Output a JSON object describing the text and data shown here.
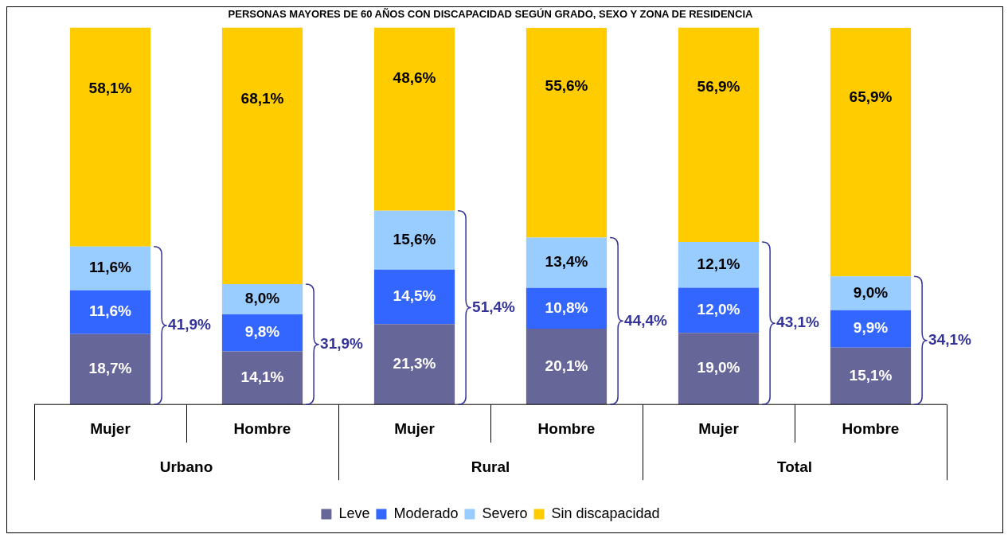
{
  "chart_data": {
    "type": "bar",
    "title": "PERSONAS MAYORES DE 60 AÑOS CON DISCAPACIDAD SEGÚN GRADO, SEXO Y ZONA DE RESIDENCIA",
    "categories": [
      "Mujer",
      "Hombre",
      "Mujer",
      "Hombre",
      "Mujer",
      "Hombre"
    ],
    "stacked": true,
    "legend": "bottom",
    "grid": false,
    "series": [
      {
        "name": "Leve",
        "color": "#666699",
        "values": [
          18.7,
          14.1,
          21.3,
          20.1,
          19.0,
          15.1
        ],
        "value_labels": [
          "18,7%",
          "14,1%",
          "21,3%",
          "20,1%",
          "19,0%",
          "15,1%"
        ]
      },
      {
        "name": "Moderado",
        "color": "#3366ff",
        "values": [
          11.6,
          9.8,
          14.5,
          10.8,
          12.0,
          9.9
        ],
        "value_labels": [
          "11,6%",
          "9,8%",
          "14,5%",
          "10,8%",
          "12,0%",
          "9,9%"
        ]
      },
      {
        "name": "Severo",
        "color": "#99ccff",
        "values": [
          11.6,
          8.0,
          15.6,
          13.4,
          12.1,
          9.0
        ],
        "value_labels": [
          "11,6%",
          "8,0%",
          "15,6%",
          "13,4%",
          "12,1%",
          "9,0%"
        ]
      },
      {
        "name": "Sin discapacidad",
        "color": "#ffcc00",
        "values": [
          58.1,
          68.1,
          48.6,
          55.6,
          56.9,
          65.9
        ],
        "value_labels": [
          "58,1%",
          "68,1%",
          "48,6%",
          "55,6%",
          "56,9%",
          "65,9%"
        ]
      }
    ],
    "annotations": [
      "Urbano",
      "Rural",
      "Total",
      "41,9%",
      "31,9%",
      "51,4%",
      "44,4%",
      "43,1%",
      "34,1%"
    ]
  }
}
